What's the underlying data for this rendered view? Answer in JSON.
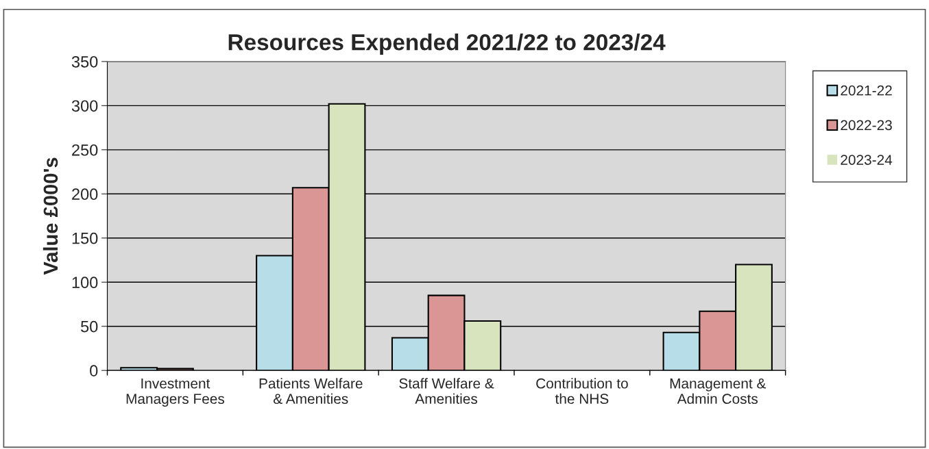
{
  "chart_data": {
    "type": "bar",
    "title": "Resources Expended 2021/22 to 2023/24",
    "ylabel": "Value £000's",
    "categories": [
      "Investment\nManagers Fees",
      "Patients Welfare\n& Amenities",
      "Staff Welfare &\nAmenities",
      "Contribution to\nthe NHS",
      "Management &\nAdmin Costs"
    ],
    "series": [
      {
        "name": "2021-22",
        "color": "#b7dde8",
        "values": [
          3,
          130,
          37,
          0,
          43
        ]
      },
      {
        "name": "2022-23",
        "color": "#d99694",
        "values": [
          2,
          207,
          85,
          0,
          67
        ]
      },
      {
        "name": "2023-24",
        "color": "#d7e4bd",
        "values": [
          0,
          302,
          56,
          0,
          120
        ]
      }
    ],
    "ylim": [
      0,
      350
    ],
    "yticks": [
      0,
      50,
      100,
      150,
      200,
      250,
      300,
      350
    ],
    "grid": "y",
    "legend": "right"
  }
}
